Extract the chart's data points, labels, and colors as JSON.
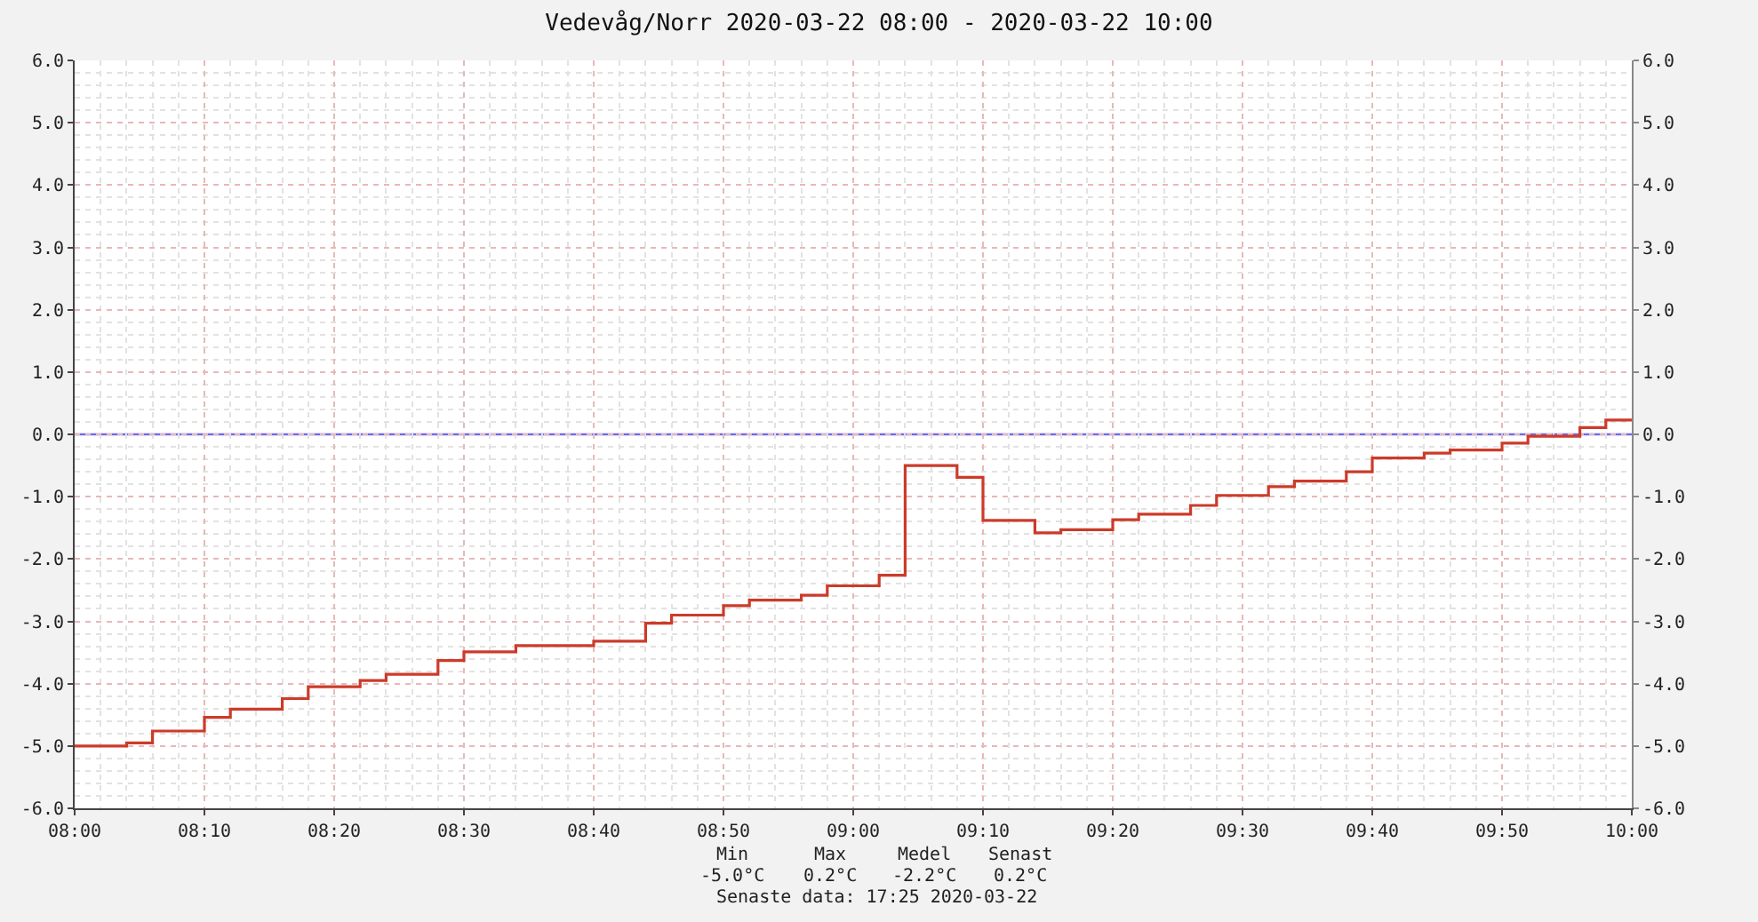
{
  "chart_data": {
    "type": "step",
    "title": "Vedevåg/Norr 2020-03-22 08:00 - 2020-03-22 10:00",
    "x": [
      "2020-03-22T08:00",
      "2020-03-22T08:04",
      "2020-03-22T08:06",
      "2020-03-22T08:10",
      "2020-03-22T08:12",
      "2020-03-22T08:16",
      "2020-03-22T08:18",
      "2020-03-22T08:22",
      "2020-03-22T08:24",
      "2020-03-22T08:28",
      "2020-03-22T08:30",
      "2020-03-22T08:34",
      "2020-03-22T08:40",
      "2020-03-22T08:44",
      "2020-03-22T08:46",
      "2020-03-22T08:50",
      "2020-03-22T08:52",
      "2020-03-22T08:56",
      "2020-03-22T08:58",
      "2020-03-22T09:02",
      "2020-03-22T09:04",
      "2020-03-22T09:08",
      "2020-03-22T09:10",
      "2020-03-22T09:14",
      "2020-03-22T09:16",
      "2020-03-22T09:20",
      "2020-03-22T09:22",
      "2020-03-22T09:26",
      "2020-03-22T09:28",
      "2020-03-22T09:32",
      "2020-03-22T09:34",
      "2020-03-22T09:38",
      "2020-03-22T09:40",
      "2020-03-22T09:44",
      "2020-03-22T09:46",
      "2020-03-22T09:50",
      "2020-03-22T09:52",
      "2020-03-22T09:56",
      "2020-03-22T09:58",
      "2020-03-22T10:00"
    ],
    "series": [
      {
        "color": "#cc3b2a",
        "values": [
          -5.0,
          -4.95,
          -4.76,
          -4.54,
          -4.41,
          -4.24,
          -4.05,
          -3.95,
          -3.85,
          -3.63,
          -3.49,
          -3.39,
          -3.32,
          -3.03,
          -2.9,
          -2.75,
          -2.66,
          -2.58,
          -2.43,
          -2.26,
          -0.5,
          -0.69,
          -1.38,
          -1.58,
          -1.53,
          -1.37,
          -1.28,
          -1.14,
          -0.98,
          -0.84,
          -0.75,
          -0.6,
          -0.38,
          -0.3,
          -0.25,
          -0.14,
          -0.03,
          0.11,
          0.23,
          0.23
        ]
      }
    ],
    "xlim": [
      "2020-03-22T08:00",
      "2020-03-22T10:00"
    ],
    "xticks": [
      {
        "value": "2020-03-22T08:00",
        "label": "08:00"
      },
      {
        "value": "2020-03-22T08:10",
        "label": "08:10"
      },
      {
        "value": "2020-03-22T08:20",
        "label": "08:20"
      },
      {
        "value": "2020-03-22T08:30",
        "label": "08:30"
      },
      {
        "value": "2020-03-22T08:40",
        "label": "08:40"
      },
      {
        "value": "2020-03-22T08:50",
        "label": "08:50"
      },
      {
        "value": "2020-03-22T09:00",
        "label": "09:00"
      },
      {
        "value": "2020-03-22T09:10",
        "label": "09:10"
      },
      {
        "value": "2020-03-22T09:20",
        "label": "09:20"
      },
      {
        "value": "2020-03-22T09:30",
        "label": "09:30"
      },
      {
        "value": "2020-03-22T09:40",
        "label": "09:40"
      },
      {
        "value": "2020-03-22T09:50",
        "label": "09:50"
      },
      {
        "value": "2020-03-22T10:00",
        "label": "10:00"
      }
    ],
    "ylim": [
      -6,
      6
    ],
    "yticks": [
      {
        "value": 6,
        "label": "6.0"
      },
      {
        "value": 5,
        "label": "5.0"
      },
      {
        "value": 4,
        "label": "4.0"
      },
      {
        "value": 3,
        "label": "3.0"
      },
      {
        "value": 2,
        "label": "2.0"
      },
      {
        "value": 1,
        "label": "1.0"
      },
      {
        "value": 0,
        "label": "0.0"
      },
      {
        "value": -1,
        "label": "-1.0"
      },
      {
        "value": -2,
        "label": "-2.0"
      },
      {
        "value": -3,
        "label": "-3.0"
      },
      {
        "value": -4,
        "label": "-4.0"
      },
      {
        "value": -5,
        "label": "-5.0"
      },
      {
        "value": -6,
        "label": "-6.0"
      }
    ],
    "y2lim": [
      -6,
      6
    ],
    "y2ticks": [
      {
        "value": 6,
        "label": "6.0"
      },
      {
        "value": 5,
        "label": "5.0"
      },
      {
        "value": 4,
        "label": "4.0"
      },
      {
        "value": 3,
        "label": "3.0"
      },
      {
        "value": 2,
        "label": "2.0"
      },
      {
        "value": 1,
        "label": "1.0"
      },
      {
        "value": 0,
        "label": "0.0"
      },
      {
        "value": -1,
        "label": "-1.0"
      },
      {
        "value": -2,
        "label": "-2.0"
      },
      {
        "value": -3,
        "label": "-3.0"
      },
      {
        "value": -4,
        "label": "-4.0"
      },
      {
        "value": -5,
        "label": "-5.0"
      },
      {
        "value": -6,
        "label": "-6.0"
      }
    ],
    "ref_lines": [
      {
        "axis": "y",
        "value": 0,
        "color": "#6e6eea"
      }
    ],
    "grid": true,
    "line_style": "solid",
    "annotations": [
      "Min",
      "Max",
      "Medel",
      "Senast",
      "-5.0°C",
      "0.2°C",
      "-2.2°C",
      "0.2°C",
      "Senaste data: 17:25 2020-03-22"
    ]
  }
}
